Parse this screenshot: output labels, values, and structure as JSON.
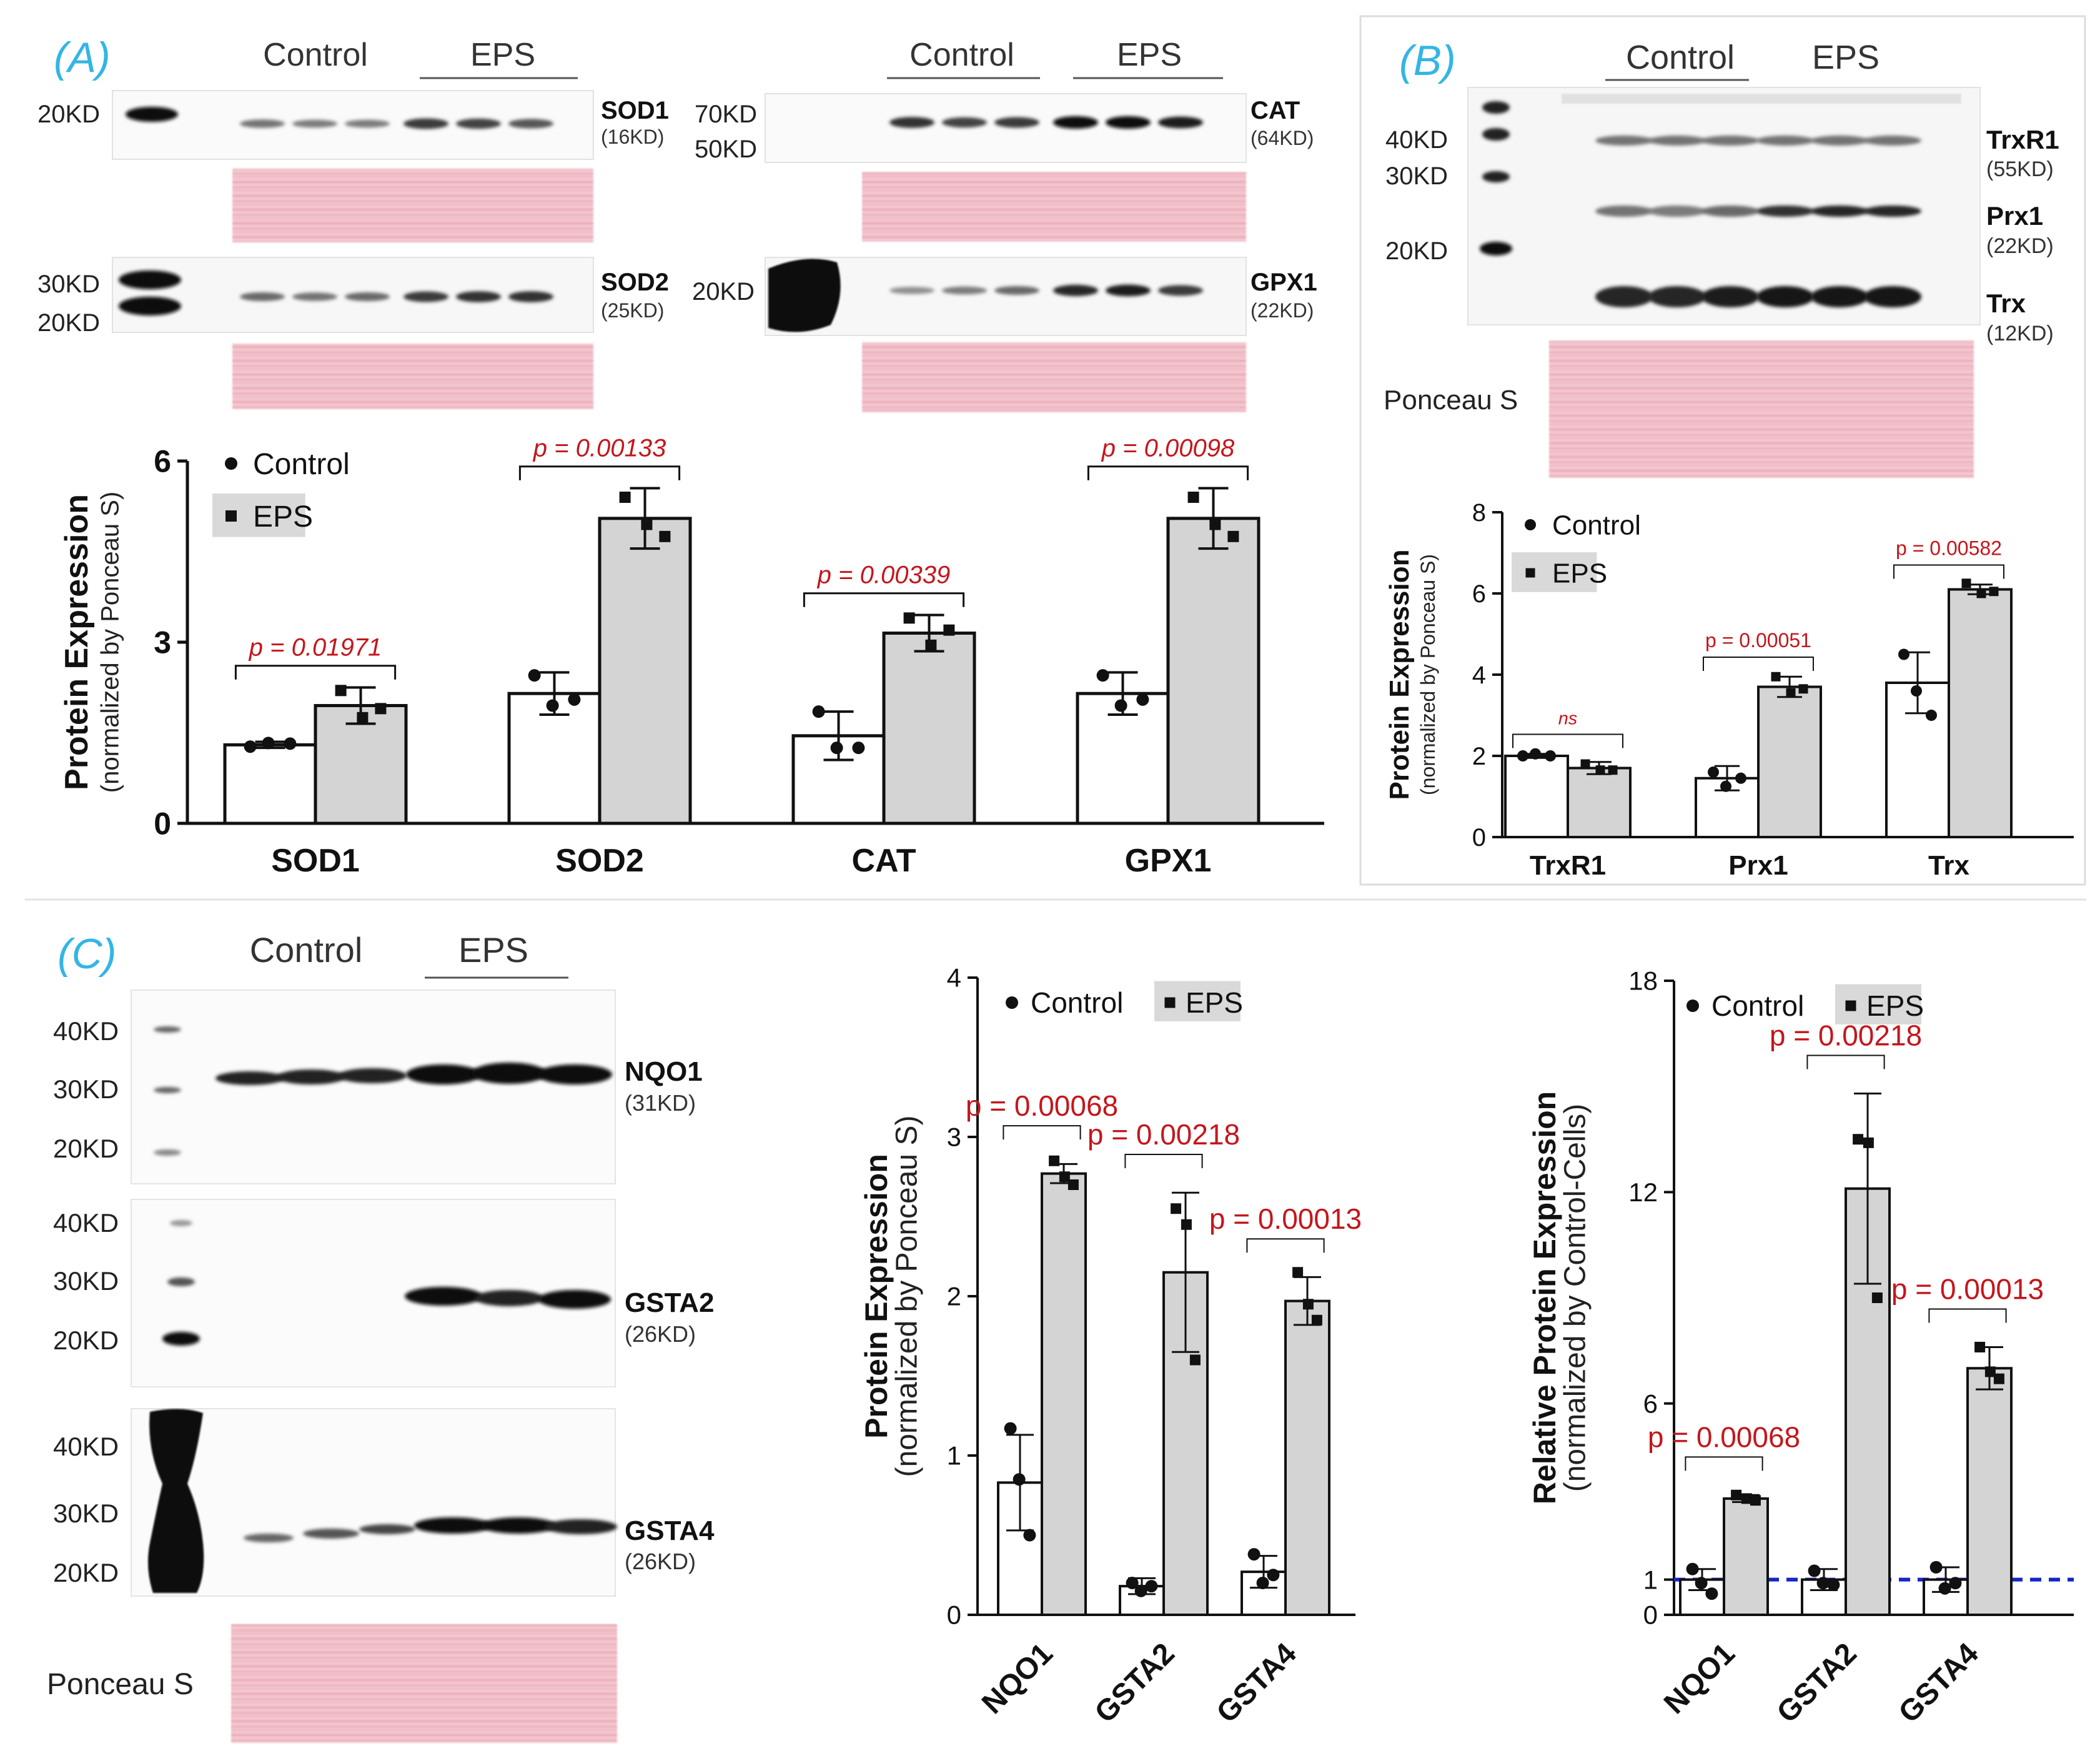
{
  "colors": {
    "control_fill": "#ffffff",
    "eps_fill": "#d4d4d4",
    "pvalue": "#c4161c",
    "panel_letter": "#33b5e5",
    "dashed_ref": "#1426c8",
    "ponceau": "#f0b9c4"
  },
  "panels": {
    "a": {
      "letter": "(A)",
      "groups": {
        "left": {
          "control": "Control",
          "eps": "EPS"
        },
        "right": {
          "control": "Control",
          "eps": "EPS"
        }
      },
      "blots": [
        {
          "id": "sod1",
          "name": "SOD1",
          "size": "(16KD)",
          "markers": [
            "20KD"
          ],
          "intensity": {
            "control": [
              0.45,
              0.4,
              0.4
            ],
            "eps": [
              0.75,
              0.7,
              0.6
            ]
          }
        },
        {
          "id": "sod2",
          "name": "SOD2",
          "size": "(25KD)",
          "markers": [
            "30KD",
            "20KD"
          ],
          "intensity": {
            "control": [
              0.5,
              0.45,
              0.5
            ],
            "eps": [
              0.75,
              0.8,
              0.8
            ]
          }
        },
        {
          "id": "cat",
          "name": "CAT",
          "size": "(64KD)",
          "markers": [
            "70KD",
            "50KD"
          ],
          "intensity": {
            "control": [
              0.8,
              0.7,
              0.75
            ],
            "eps": [
              1.0,
              1.0,
              0.9
            ]
          }
        },
        {
          "id": "gpx1",
          "name": "GPX1",
          "size": "(22KD)",
          "markers": [
            "20KD"
          ],
          "intensity": {
            "control": [
              0.3,
              0.4,
              0.5
            ],
            "eps": [
              0.85,
              0.9,
              0.75
            ]
          }
        }
      ]
    },
    "b": {
      "letter": "(B)",
      "groups": {
        "control": "Control",
        "eps": "EPS"
      },
      "markers": [
        "40KD",
        "30KD",
        "20KD"
      ],
      "proteins": [
        {
          "name": "TrxR1",
          "size": "(55KD)"
        },
        {
          "name": "Prx1",
          "size": "(22KD)"
        },
        {
          "name": "Trx",
          "size": "(12KD)"
        }
      ],
      "ponceau": "Ponceau S"
    },
    "c": {
      "letter": "(C)",
      "groups": {
        "control": "Control",
        "eps": "EPS"
      },
      "blots": [
        {
          "name": "NQO1",
          "size": "(31KD)",
          "markers": [
            "40KD",
            "30KD",
            "20KD"
          ]
        },
        {
          "name": "GSTA2",
          "size": "(26KD)",
          "markers": [
            "40KD",
            "30KD",
            "20KD"
          ]
        },
        {
          "name": "GSTA4",
          "size": "(26KD)",
          "markers": [
            "40KD",
            "30KD",
            "20KD"
          ]
        }
      ],
      "ponceau": "Ponceau S"
    }
  },
  "chart_data": [
    {
      "id": "chart-a",
      "type": "bar",
      "ylabel": "Protein Expression",
      "ylabel2": "(normalized by Ponceau S)",
      "ylim": [
        0,
        6
      ],
      "yticks": [
        "0",
        "3",
        "6"
      ],
      "categories": [
        "SOD1",
        "SOD2",
        "CAT",
        "GPX1"
      ],
      "series": [
        {
          "name": "Control",
          "values": [
            1.3,
            2.15,
            1.45,
            2.15
          ],
          "errors": [
            0.05,
            0.35,
            0.4,
            0.35
          ]
        },
        {
          "name": "EPS",
          "values": [
            1.95,
            5.05,
            3.15,
            5.05
          ],
          "errors": [
            0.3,
            0.5,
            0.3,
            0.5
          ]
        }
      ],
      "points": {
        "Control": [
          [
            1.27,
            1.33,
            1.32
          ],
          [
            2.45,
            1.95,
            2.05
          ],
          [
            1.85,
            1.25,
            1.25
          ],
          [
            2.45,
            1.95,
            2.05
          ]
        ],
        "EPS": [
          [
            2.2,
            1.75,
            1.9
          ],
          [
            5.4,
            4.95,
            4.75
          ],
          [
            3.4,
            2.95,
            3.2
          ],
          [
            5.4,
            4.95,
            4.75
          ]
        ]
      },
      "annotations": [
        "p = 0.01971",
        "p = 0.00133",
        "p = 0.00339",
        "p = 0.00098"
      ],
      "legend": "top-left"
    },
    {
      "id": "chart-b",
      "type": "bar",
      "ylabel": "Protein Expression",
      "ylabel2": "(normalized by Ponceau S)",
      "ylim": [
        0,
        8
      ],
      "yticks": [
        "0",
        "2",
        "4",
        "6",
        "8"
      ],
      "categories": [
        "TrxR1",
        "Prx1",
        "Trx"
      ],
      "series": [
        {
          "name": "Control",
          "values": [
            2.0,
            1.45,
            3.8
          ],
          "errors": [
            0.05,
            0.3,
            0.75
          ]
        },
        {
          "name": "EPS",
          "values": [
            1.7,
            3.7,
            6.1
          ],
          "errors": [
            0.15,
            0.25,
            0.12
          ]
        }
      ],
      "points": {
        "Control": [
          [
            2.0,
            2.05,
            2.0
          ],
          [
            1.6,
            1.25,
            1.45
          ],
          [
            4.5,
            3.6,
            3.0
          ]
        ],
        "EPS": [
          [
            1.8,
            1.65,
            1.65
          ],
          [
            3.95,
            3.55,
            3.65
          ],
          [
            6.25,
            6.0,
            6.05
          ]
        ]
      },
      "annotations": [
        "ns",
        "p = 0.00051",
        "p = 0.00582"
      ],
      "legend": "top-left"
    },
    {
      "id": "chart-c1",
      "type": "bar",
      "ylabel": "Protein Expression",
      "ylabel2": "(normalized by Ponceau S)",
      "ylim": [
        0,
        4
      ],
      "yticks": [
        "0",
        "1",
        "2",
        "3",
        "4"
      ],
      "categories": [
        "NQO1",
        "GSTA2",
        "GSTA4"
      ],
      "series": [
        {
          "name": "Control",
          "values": [
            0.83,
            0.18,
            0.27
          ],
          "errors": [
            0.3,
            0.05,
            0.1
          ]
        },
        {
          "name": "EPS",
          "values": [
            2.77,
            2.15,
            1.97
          ],
          "errors": [
            0.06,
            0.5,
            0.15
          ]
        }
      ],
      "points": {
        "Control": [
          [
            1.17,
            0.85,
            0.5
          ],
          [
            0.2,
            0.15,
            0.18
          ],
          [
            0.38,
            0.2,
            0.25
          ]
        ],
        "EPS": [
          [
            2.85,
            2.75,
            2.7
          ],
          [
            2.55,
            2.45,
            1.6
          ],
          [
            2.15,
            1.95,
            1.85
          ]
        ]
      },
      "annotations": [
        "p = 0.00068",
        "p = 0.00218",
        "p = 0.00013"
      ],
      "legend": "top"
    },
    {
      "id": "chart-c2",
      "type": "bar",
      "ylabel": "Relative Protein Expression",
      "ylabel2": "(normalized by Control-Cells)",
      "ylim": [
        0,
        18
      ],
      "yticks": [
        "0",
        "1",
        "6",
        "12",
        "18"
      ],
      "ytick_values": [
        0,
        1,
        6,
        12,
        18
      ],
      "reference_line": 1,
      "categories": [
        "NQO1",
        "GSTA2",
        "GSTA4"
      ],
      "series": [
        {
          "name": "Control",
          "values": [
            1.0,
            1.0,
            1.0
          ],
          "errors": [
            0.3,
            0.3,
            0.35
          ]
        },
        {
          "name": "EPS",
          "values": [
            3.3,
            12.1,
            7.0
          ],
          "errors": [
            0.1,
            2.7,
            0.6
          ]
        }
      ],
      "points": {
        "Control": [
          [
            1.3,
            0.9,
            0.6
          ],
          [
            1.25,
            0.9,
            0.85
          ],
          [
            1.35,
            0.75,
            0.9
          ]
        ],
        "EPS": [
          [
            3.4,
            3.3,
            3.25
          ],
          [
            13.5,
            13.4,
            9.0
          ],
          [
            7.6,
            6.9,
            6.7
          ]
        ]
      },
      "annotations": [
        "p = 0.00068",
        "p = 0.00218",
        "p = 0.00013"
      ],
      "legend": "top"
    }
  ]
}
